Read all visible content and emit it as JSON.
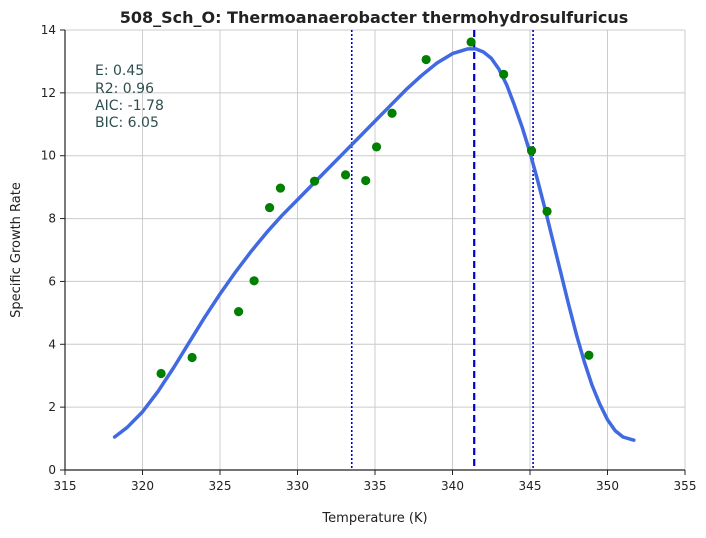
{
  "chart_data": {
    "type": "scatter",
    "title": "508_Sch_O: Thermoanaerobacter thermohydrosulfuricus",
    "xlabel": "Temperature (K)",
    "ylabel": "Specific Growth Rate",
    "xlim": [
      315,
      355
    ],
    "ylim": [
      0,
      14
    ],
    "x_ticks": [
      315,
      320,
      325,
      330,
      335,
      340,
      345,
      350,
      355
    ],
    "y_ticks": [
      0,
      2,
      4,
      6,
      8,
      10,
      12,
      14
    ],
    "grid": true,
    "annotations": [
      "E:  0.45",
      "R2:  0.96",
      "AIC: -1.78",
      "BIC: 6.05"
    ],
    "series": [
      {
        "kind": "points",
        "color": "#008000",
        "x": [
          321.2,
          323.2,
          326.2,
          327.2,
          328.2,
          328.9,
          331.1,
          333.1,
          334.4,
          335.1,
          336.1,
          338.3,
          341.2,
          343.3,
          345.1,
          346.1,
          348.8
        ],
        "y": [
          3.07,
          3.58,
          5.04,
          6.02,
          8.35,
          8.97,
          9.19,
          9.39,
          9.21,
          10.28,
          11.35,
          13.06,
          13.62,
          12.59,
          10.16,
          8.23,
          3.65
        ]
      },
      {
        "kind": "fit-line",
        "color": "#4169e1",
        "x": [
          318.2,
          319,
          320,
          321,
          322,
          323,
          324,
          325,
          326,
          327,
          328,
          329,
          330,
          331,
          332,
          333,
          334,
          335,
          336,
          337,
          338,
          339,
          340,
          341,
          341.5,
          342,
          342.5,
          343,
          343.5,
          344,
          344.5,
          345,
          345.5,
          346,
          346.5,
          347,
          347.5,
          348,
          348.5,
          349,
          349.5,
          350,
          350.5,
          351,
          351.7
        ],
        "y": [
          1.05,
          1.35,
          1.85,
          2.5,
          3.25,
          4.05,
          4.85,
          5.6,
          6.3,
          6.95,
          7.55,
          8.1,
          8.6,
          9.1,
          9.6,
          10.1,
          10.6,
          11.1,
          11.6,
          12.1,
          12.55,
          12.95,
          13.25,
          13.4,
          13.4,
          13.3,
          13.1,
          12.75,
          12.25,
          11.6,
          10.9,
          10.1,
          9.2,
          8.25,
          7.25,
          6.25,
          5.25,
          4.3,
          3.45,
          2.7,
          2.1,
          1.6,
          1.25,
          1.05,
          0.95
        ]
      }
    ],
    "vertical_lines": [
      {
        "x": 333.5,
        "style": "dotted",
        "color": "#0000cd"
      },
      {
        "x": 341.4,
        "style": "dashed",
        "color": "#0000cd"
      },
      {
        "x": 345.2,
        "style": "dotted",
        "color": "#0000cd"
      }
    ]
  }
}
